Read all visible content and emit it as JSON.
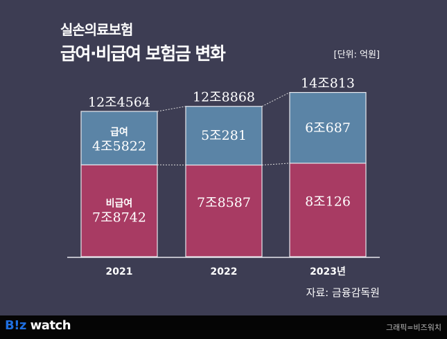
{
  "header": {
    "subtitle": "실손의료보험",
    "title": "급여·비급여 보험금 변화",
    "unit": "[단위: 억원]"
  },
  "source": "자료: 금융감독원",
  "footer": {
    "logo_b": "B!z",
    "logo_w": " watch",
    "credit": "그래픽=비즈워치"
  },
  "colors": {
    "background": "#3d3d53",
    "covered": "#5b84a6",
    "noncovered": "#a83b63",
    "outline": "#e8e8ee"
  },
  "chart_data": {
    "type": "bar",
    "stacked": true,
    "title": "급여·비급여 보험금 변화",
    "unit": "억원",
    "categories": [
      "2021",
      "2022",
      "2023년"
    ],
    "series": [
      {
        "name": "비급여",
        "values": [
          78742,
          78587,
          80126
        ],
        "labels": [
          "7조8742",
          "7조8587",
          "8조126"
        ]
      },
      {
        "name": "급여",
        "values": [
          45822,
          50281,
          60687
        ],
        "labels": [
          "4조5822",
          "5조281",
          "6조687"
        ]
      }
    ],
    "totals": [
      124564,
      128868,
      140813
    ],
    "total_labels": [
      "12조4564",
      "12조8868",
      "14조813"
    ],
    "ylim": [
      0,
      150000
    ],
    "grid": false
  }
}
